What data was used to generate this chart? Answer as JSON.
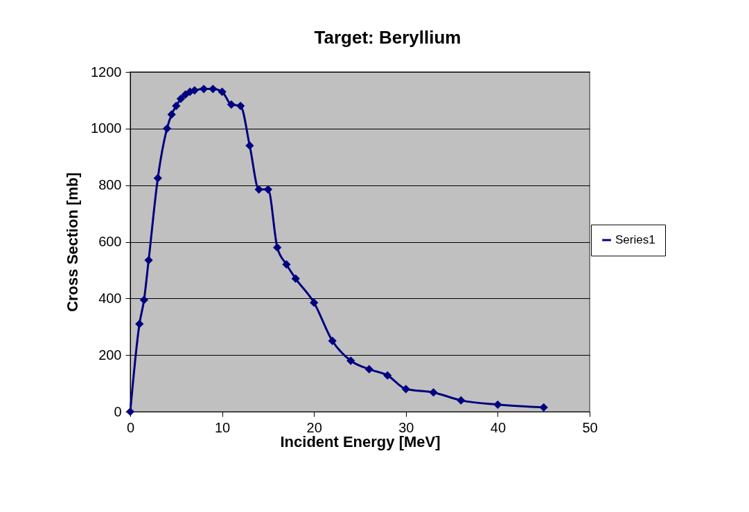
{
  "chart_data": {
    "type": "line",
    "title": "Target: Beryllium",
    "xlabel": "Incident Energy [MeV]",
    "ylabel": "Cross Section [mb]",
    "x": [
      0,
      1,
      1.5,
      2,
      3,
      4,
      4.5,
      5,
      5.5,
      6,
      6.5,
      7,
      8,
      9,
      10,
      11,
      12,
      13,
      14,
      15,
      16,
      17,
      18,
      20,
      22,
      24,
      26,
      28,
      30,
      33,
      36,
      40,
      45
    ],
    "series": [
      {
        "name": "Series1",
        "color": "#000080",
        "values": [
          0,
          310,
          395,
          535,
          825,
          1000,
          1050,
          1080,
          1105,
          1120,
          1130,
          1135,
          1140,
          1140,
          1130,
          1085,
          1080,
          940,
          785,
          785,
          580,
          520,
          470,
          385,
          250,
          180,
          150,
          128,
          80,
          68,
          40,
          25,
          15
        ]
      }
    ],
    "xlim": [
      0,
      50
    ],
    "xticks": [
      0,
      10,
      20,
      30,
      40,
      50
    ],
    "ylim": [
      0,
      1200
    ],
    "yticks": [
      0,
      200,
      400,
      600,
      800,
      1000,
      1200
    ],
    "grid": "y",
    "legend": "right",
    "marker": "diamond",
    "line_style": "solid"
  }
}
